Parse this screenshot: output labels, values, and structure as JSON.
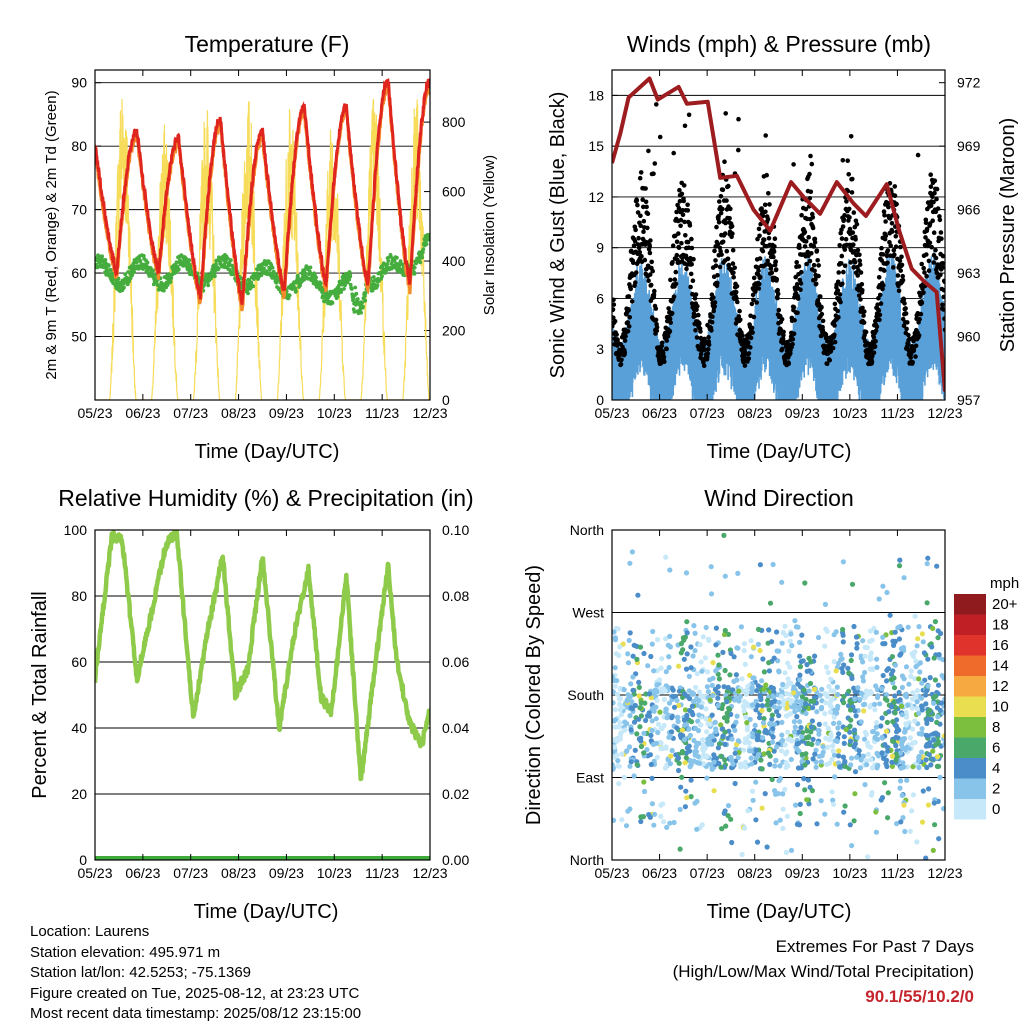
{
  "colors": {
    "temp_2m": "#e0251f",
    "temp_9m": "#f58a2a",
    "dewpoint": "#45ad3e",
    "insolation": "#f7dc5a",
    "gust": "#000000",
    "wind": "#5aa0d8",
    "pressure": "#9c1c1f",
    "rh": "#8fcb4a",
    "precip": "#3daa3a",
    "extremes": "#c4242b"
  },
  "chart_data": [
    {
      "id": "temperature",
      "type": "line",
      "title": "Temperature (F)",
      "xlabel": "Time (Day/UTC)",
      "ylabel_left": "2m & 9m T (Red, Orange) & 2m Td (Green)",
      "ylabel_right": "Solar Insolation (Yellow)",
      "x_ticks": [
        "05/23",
        "06/23",
        "07/23",
        "08/23",
        "09/23",
        "10/23",
        "11/23",
        "12/23"
      ],
      "ylim_left": [
        40,
        92
      ],
      "yticks_left": [
        50,
        60,
        70,
        80,
        90
      ],
      "ylim_right": [
        0,
        950
      ],
      "yticks_right": [
        0,
        200,
        400,
        600,
        800
      ],
      "grid": true,
      "temp_daily_max": [
        80,
        82,
        81,
        84,
        82,
        86,
        86,
        90
      ],
      "temp_daily_min": [
        60,
        60,
        56,
        55,
        57,
        58,
        58
      ],
      "dewpoint_range": [
        55,
        64
      ],
      "insolation_daily_peak": [
        940,
        800,
        870,
        880,
        850,
        830,
        890
      ]
    },
    {
      "id": "winds",
      "type": "line",
      "title": "Winds (mph) & Pressure (mb)",
      "xlabel": "Time (Day/UTC)",
      "ylabel_left": "Sonic Wind & Gust (Blue, Black)",
      "ylabel_right": "Station Pressure (Maroon)",
      "x_ticks": [
        "05/23",
        "06/23",
        "07/23",
        "08/23",
        "09/23",
        "10/23",
        "11/23",
        "12/23"
      ],
      "ylim_left": [
        0,
        19.5
      ],
      "yticks_left": [
        0,
        3,
        6,
        9,
        12,
        15,
        18
      ],
      "ylim_right": [
        957,
        972.6
      ],
      "yticks_right": [
        957,
        960,
        963,
        966,
        969,
        972
      ],
      "grid": true,
      "pressure_series": [
        [
          0,
          968.2
        ],
        [
          0.2,
          969.6
        ],
        [
          0.4,
          971.3
        ],
        [
          0.9,
          972.2
        ],
        [
          1.1,
          971.2
        ],
        [
          1.6,
          971.8
        ],
        [
          1.8,
          971.0
        ],
        [
          2.3,
          971.1
        ],
        [
          2.6,
          967.5
        ],
        [
          3.0,
          967.6
        ],
        [
          3.4,
          966.0
        ],
        [
          3.8,
          965.0
        ],
        [
          4.3,
          967.3
        ],
        [
          4.6,
          966.6
        ],
        [
          5.0,
          965.8
        ],
        [
          5.4,
          967.3
        ],
        [
          5.8,
          966.3
        ],
        [
          6.1,
          965.7
        ],
        [
          6.6,
          967.2
        ],
        [
          6.9,
          965.0
        ],
        [
          7.2,
          963.2
        ],
        [
          7.5,
          962.6
        ],
        [
          7.8,
          962.1
        ],
        [
          8.0,
          957.4
        ]
      ],
      "gust_peak": 17.5,
      "wind_peak": 10
    },
    {
      "id": "humidity",
      "type": "line",
      "title": "Relative Humidity (%) & Precipitation (in)",
      "xlabel": "Time (Day/UTC)",
      "ylabel_left": "Percent & Total Rainfall",
      "x_ticks": [
        "05/23",
        "06/23",
        "07/23",
        "08/23",
        "09/23",
        "10/23",
        "11/23",
        "12/23"
      ],
      "ylim_left": [
        0,
        100
      ],
      "yticks_left": [
        0,
        20,
        40,
        60,
        80,
        100
      ],
      "ylim_right": [
        0,
        0.1
      ],
      "yticks_right": [
        "0.00",
        "0.02",
        "0.04",
        "0.06",
        "0.08",
        "0.10"
      ],
      "grid": true,
      "rh_series": [
        [
          0,
          55
        ],
        [
          0.25,
          82
        ],
        [
          0.4,
          98
        ],
        [
          0.65,
          97
        ],
        [
          1.0,
          55
        ],
        [
          1.3,
          72
        ],
        [
          1.7,
          96
        ],
        [
          1.95,
          99
        ],
        [
          2.35,
          43
        ],
        [
          2.7,
          70
        ],
        [
          3.05,
          92
        ],
        [
          3.35,
          50
        ],
        [
          3.65,
          58
        ],
        [
          4.0,
          92
        ],
        [
          4.4,
          40
        ],
        [
          4.75,
          68
        ],
        [
          5.1,
          88
        ],
        [
          5.4,
          49
        ],
        [
          5.65,
          45
        ],
        [
          6.0,
          86
        ],
        [
          6.35,
          24
        ],
        [
          6.7,
          60
        ],
        [
          7.0,
          89
        ],
        [
          7.2,
          61
        ],
        [
          7.5,
          42
        ],
        [
          7.8,
          35
        ],
        [
          8.0,
          45
        ]
      ],
      "precip_total": 0.0
    },
    {
      "id": "wind_direction",
      "type": "scatter",
      "title": "Wind Direction",
      "xlabel": "Time (Day/UTC)",
      "ylabel": "Direction (Colored By Speed)",
      "x_ticks": [
        "05/23",
        "06/23",
        "07/23",
        "08/23",
        "09/23",
        "10/23",
        "11/23",
        "12/23"
      ],
      "y_ticks": [
        "North",
        "East",
        "South",
        "West",
        "North"
      ],
      "ylim": [
        0,
        360
      ],
      "grid": true,
      "legend_title": "mph",
      "legend_labels": [
        "0",
        "2",
        "4",
        "6",
        "8",
        "10",
        "12",
        "14",
        "16",
        "18",
        "20+"
      ],
      "legend_colors": [
        "#c6e8f8",
        "#88c4ea",
        "#4a8dc8",
        "#4aa86a",
        "#7cbf3f",
        "#e8de50",
        "#f7a941",
        "#ef6b2b",
        "#e0332b",
        "#c11f26",
        "#901b1f"
      ]
    }
  ],
  "footer": {
    "location": "Location: Laurens",
    "elevation": "Station elevation: 495.971 m",
    "latlon": "Station lat/lon: 42.5253; -75.1369",
    "created": "Figure created on Tue, 2025-08-12, at 23:23 UTC",
    "recent": "Most recent data timestamp: 2025/08/12 23:15:00"
  },
  "extremes": {
    "title": "Extremes For Past 7 Days",
    "subtitle": "(High/Low/Max Wind/Total Precipitation)",
    "value": "90.1/55/10.2/0"
  }
}
